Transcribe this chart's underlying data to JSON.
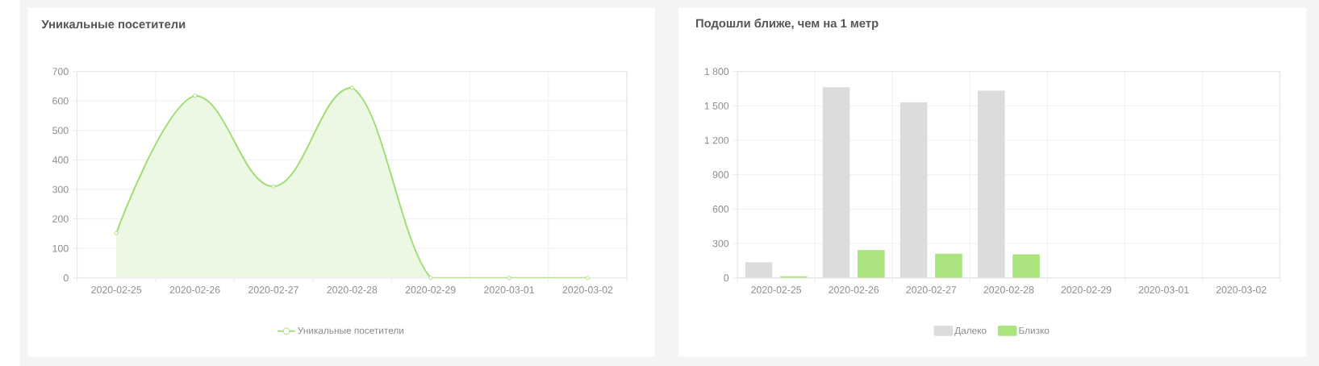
{
  "chart_data": [
    {
      "type": "area",
      "title": "Уникальные посетители",
      "categories": [
        "2020-02-25",
        "2020-02-26",
        "2020-02-27",
        "2020-02-28",
        "2020-02-29",
        "2020-03-01",
        "2020-03-02"
      ],
      "series": [
        {
          "name": "Уникальные посетители",
          "color": "#a0dd74",
          "values": [
            152,
            618,
            310,
            645,
            0,
            0,
            0
          ]
        }
      ],
      "ylim": [
        0,
        700
      ],
      "yticks": [
        0,
        100,
        200,
        300,
        400,
        500,
        600,
        700
      ],
      "grid": true,
      "legend": "bottom",
      "marker": "circle"
    },
    {
      "type": "bar",
      "title": "Подошли ближе, чем на 1 метр",
      "categories": [
        "2020-02-25",
        "2020-02-26",
        "2020-02-27",
        "2020-02-28",
        "2020-02-29",
        "2020-03-01",
        "2020-03-02"
      ],
      "series": [
        {
          "name": "Далеко",
          "color": "#dcdcdc",
          "values": [
            136,
            1662,
            1530,
            1632,
            0,
            0,
            0
          ]
        },
        {
          "name": "Близко",
          "color": "#abe47e",
          "values": [
            14,
            242,
            210,
            205,
            0,
            0,
            0
          ]
        }
      ],
      "ylim": [
        0,
        1800
      ],
      "yticks": [
        0,
        300,
        600,
        900,
        {
          "value": 1200,
          "label": "1 200"
        },
        {
          "value": 1500,
          "label": "1 500"
        },
        {
          "value": 1800,
          "label": "1 800"
        }
      ],
      "grid": true,
      "legend": "bottom"
    }
  ]
}
